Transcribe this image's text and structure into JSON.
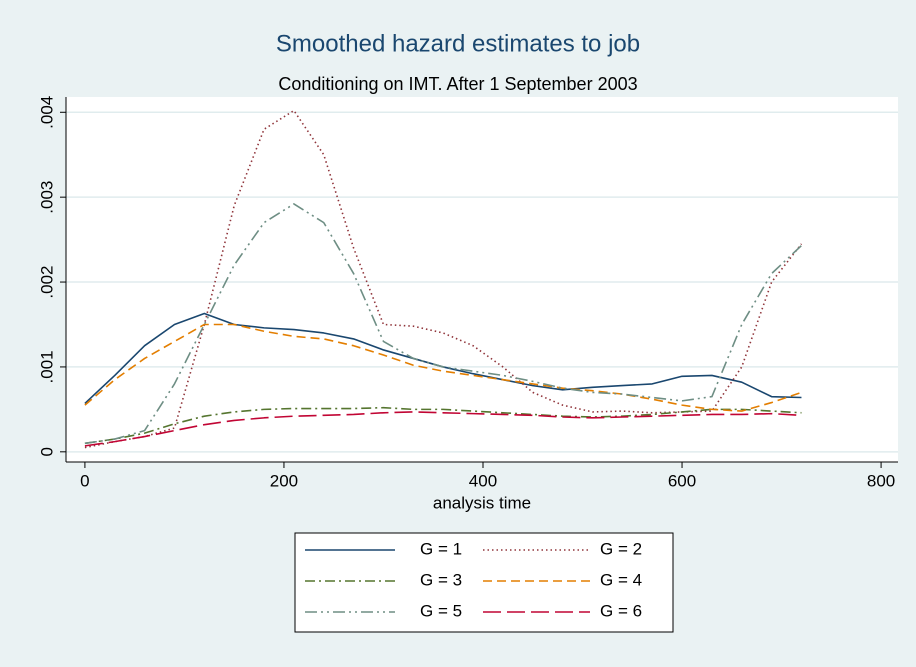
{
  "chart_data": {
    "type": "line",
    "title": "Smoothed hazard estimates to job",
    "subtitle": "Conditioning on IMT. After 1 September 2003",
    "x_label": "analysis time",
    "x": [
      0,
      30,
      60,
      90,
      120,
      150,
      180,
      210,
      240,
      270,
      300,
      330,
      360,
      390,
      420,
      450,
      480,
      510,
      540,
      570,
      600,
      630,
      660,
      690,
      720
    ],
    "series": [
      {
        "name": "G = 1",
        "color": "#1a476f",
        "dash": "solid",
        "values": [
          0.00057,
          0.0009,
          0.00125,
          0.0015,
          0.00163,
          0.0015,
          0.00146,
          0.00144,
          0.0014,
          0.00133,
          0.0012,
          0.0011,
          0.001,
          0.00092,
          0.00085,
          0.00078,
          0.00073,
          0.00076,
          0.00078,
          0.0008,
          0.00089,
          0.0009,
          0.00082,
          0.00065,
          0.00064
        ]
      },
      {
        "name": "G = 2",
        "color": "#90353b",
        "dash": "dot",
        "values": [
          5e-05,
          0.00012,
          0.00018,
          0.00028,
          0.0015,
          0.0029,
          0.0038,
          0.00402,
          0.0035,
          0.0024,
          0.0015,
          0.00148,
          0.0014,
          0.00125,
          0.001,
          0.0007,
          0.00055,
          0.00047,
          0.00048,
          0.00046,
          0.00047,
          0.00048,
          0.001,
          0.002,
          0.00245
        ]
      },
      {
        "name": "G = 3",
        "color": "#55752f",
        "dash": "dashdot",
        "values": [
          0.0001,
          0.00015,
          0.00022,
          0.00033,
          0.00042,
          0.00047,
          0.0005,
          0.00051,
          0.00051,
          0.00051,
          0.00052,
          0.0005,
          0.0005,
          0.00048,
          0.00046,
          0.00044,
          0.00042,
          0.00041,
          0.00042,
          0.00044,
          0.00047,
          0.0005,
          0.0005,
          0.00048,
          0.00046
        ]
      },
      {
        "name": "G = 4",
        "color": "#e37e00",
        "dash": "dash",
        "values": [
          0.00055,
          0.00085,
          0.0011,
          0.0013,
          0.0015,
          0.0015,
          0.00142,
          0.00136,
          0.00133,
          0.00125,
          0.00114,
          0.00102,
          0.00095,
          0.0009,
          0.00085,
          0.0008,
          0.00075,
          0.00072,
          0.00068,
          0.00062,
          0.00055,
          0.0005,
          0.00048,
          0.00058,
          0.0007
        ]
      },
      {
        "name": "G = 5",
        "color": "#6e8e84",
        "dash": "dashdotdot",
        "values": [
          0.0001,
          0.00015,
          0.00025,
          0.0008,
          0.0015,
          0.0022,
          0.0027,
          0.00292,
          0.0027,
          0.0021,
          0.0013,
          0.0011,
          0.001,
          0.00095,
          0.0009,
          0.00083,
          0.00075,
          0.0007,
          0.00068,
          0.00064,
          0.0006,
          0.00065,
          0.0015,
          0.0021,
          0.00243
        ]
      },
      {
        "name": "G = 6",
        "color": "#c10534",
        "dash": "longdash",
        "values": [
          7e-05,
          0.00012,
          0.00018,
          0.00025,
          0.00032,
          0.00037,
          0.0004,
          0.00042,
          0.00043,
          0.00044,
          0.00046,
          0.00047,
          0.00046,
          0.00045,
          0.00044,
          0.00043,
          0.00041,
          0.0004,
          0.00041,
          0.00042,
          0.00043,
          0.00044,
          0.00044,
          0.00045,
          0.00043
        ]
      }
    ],
    "xlim": [
      -19,
      817
    ],
    "xticks": [
      0,
      200,
      400,
      600,
      800
    ],
    "ylim": [
      -0.00012,
      0.00418
    ],
    "yticks": [
      0,
      {
        "value": 0.001,
        "label": ".001"
      },
      {
        "value": 0.002,
        "label": ".002"
      },
      {
        "value": 0.003,
        "label": ".003"
      },
      {
        "value": 0.004,
        "label": ".004"
      }
    ],
    "grid": true,
    "legend": "bottom"
  }
}
